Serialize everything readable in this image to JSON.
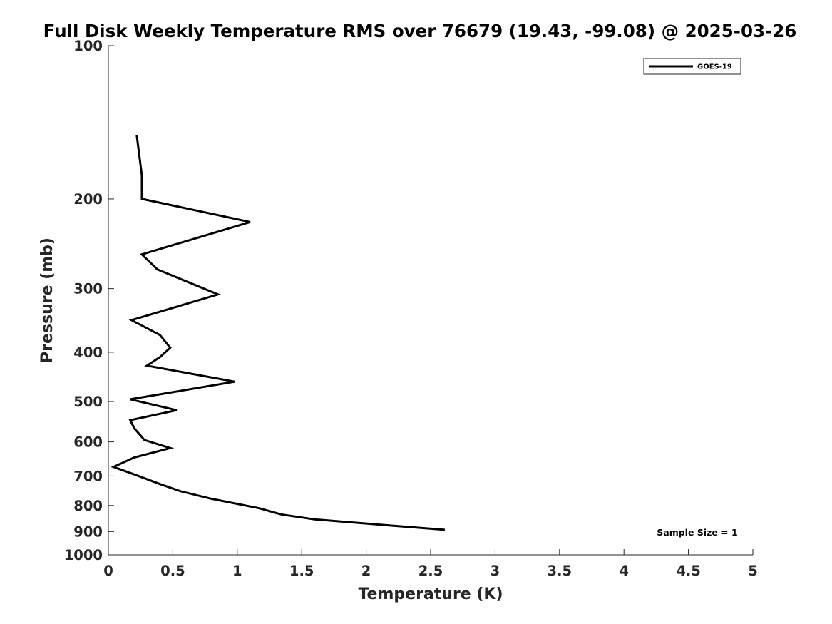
{
  "chart_data": {
    "type": "line",
    "title": "Full Disk Weekly Temperature RMS over 76679 (19.43, -99.08) @ 2025-03-26",
    "xlabel": "Temperature (K)",
    "ylabel": "Pressure (mb)",
    "xlim": [
      0,
      5
    ],
    "ylim": [
      100,
      1000
    ],
    "y_scale": "log",
    "y_reversed": true,
    "x_ticks": [
      "0",
      "0.5",
      "1",
      "1.5",
      "2",
      "2.5",
      "3",
      "3.5",
      "4",
      "4.5",
      "5"
    ],
    "y_ticks": [
      "100",
      "200",
      "300",
      "400",
      "500",
      "600",
      "700",
      "800",
      "900",
      "1000"
    ],
    "grid": false,
    "legend": {
      "position": "top-right",
      "entries": [
        "GOES-19"
      ]
    },
    "annotation": "Sample Size = 1",
    "series": [
      {
        "name": "GOES-19",
        "color": "#000000",
        "points": [
          [
            0.22,
            150
          ],
          [
            0.26,
            180
          ],
          [
            0.26,
            200
          ],
          [
            1.1,
            222
          ],
          [
            0.26,
            257
          ],
          [
            0.38,
            275
          ],
          [
            0.85,
            308
          ],
          [
            0.18,
            346
          ],
          [
            0.4,
            370
          ],
          [
            0.48,
            392
          ],
          [
            0.4,
            409
          ],
          [
            0.3,
            425
          ],
          [
            0.98,
            457
          ],
          [
            0.17,
            495
          ],
          [
            0.53,
            520
          ],
          [
            0.17,
            544
          ],
          [
            0.2,
            564
          ],
          [
            0.28,
            595
          ],
          [
            0.48,
            617
          ],
          [
            0.2,
            644
          ],
          [
            0.04,
            672
          ],
          [
            0.2,
            695
          ],
          [
            0.4,
            726
          ],
          [
            0.56,
            750
          ],
          [
            0.8,
            776
          ],
          [
            1.17,
            810
          ],
          [
            1.34,
            833
          ],
          [
            1.6,
            852
          ],
          [
            2.17,
            875
          ],
          [
            2.61,
            893
          ]
        ]
      }
    ]
  }
}
